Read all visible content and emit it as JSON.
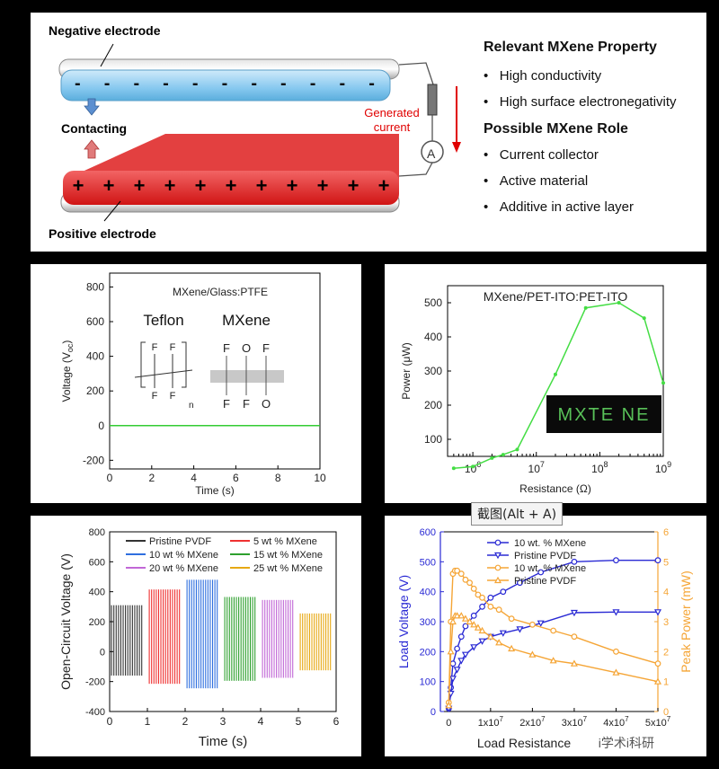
{
  "top": {
    "negative_label": "Negative electrode",
    "positive_label": "Positive electrode",
    "contacting_label": "Contacting",
    "generated_current": [
      "Generated",
      "current"
    ],
    "ammeter_symbol": "A",
    "minus_signs": [
      "-",
      "-",
      "-",
      "-",
      "-",
      "-",
      "-",
      "-",
      "-",
      "-",
      "-"
    ],
    "plus_signs": [
      "+",
      "+",
      "+",
      "+",
      "+",
      "+",
      "+",
      "+",
      "+",
      "+",
      "+"
    ],
    "property_heading": "Relevant MXene Property",
    "property_items": [
      "High conductivity",
      "High surface electronegativity"
    ],
    "role_heading": "Possible MXene Role",
    "role_items": [
      "Current collector",
      "Active material",
      "Additive in active layer"
    ],
    "bullet_char": "•",
    "colors": {
      "negative": "#8fcdef",
      "positive": "#e21d1d",
      "arrow": "#e00000"
    }
  },
  "chart_data": [
    {
      "type": "line",
      "inset_title": "MXene/Glass:PTFE",
      "xlabel": "Time (s)",
      "ylabel": "Voltage (V",
      "ylabel_sub": "oc",
      "ylabel_end": ")",
      "xlim": [
        0,
        10
      ],
      "ylim": [
        -250,
        880
      ],
      "xticks": [
        0,
        2,
        4,
        6,
        8,
        10
      ],
      "yticks": [
        -200,
        0,
        200,
        400,
        600,
        800
      ],
      "series": [
        {
          "x": [
            0,
            10
          ],
          "y": [
            0,
            0
          ],
          "color": "#33cc33"
        }
      ],
      "schematic": {
        "teflon_label": "Teflon",
        "mxene_label": "MXene",
        "teflon_atoms": [
          "F",
          "F",
          "F",
          "F"
        ],
        "teflon_n": "n",
        "mxene_top": [
          "F",
          "O",
          "F"
        ],
        "mxene_bottom": [
          "F",
          "F",
          "O"
        ]
      }
    },
    {
      "type": "line",
      "title": "MXene/PET-ITO:PET-ITO",
      "xlabel": "Resistance (Ω)",
      "ylabel": "Power (μW)",
      "xscale": "log",
      "xlim": [
        400000,
        1000000000
      ],
      "ylim": [
        50,
        550
      ],
      "xtick_base": "10",
      "xtick_exps": [
        "6",
        "7",
        "8",
        "9"
      ],
      "yticks": [
        100,
        200,
        300,
        400,
        500
      ],
      "series": [
        {
          "x": [
            500000,
            1000000,
            2000000,
            3000000,
            5000000,
            20000000,
            60000000,
            200000000,
            500000000,
            1000000000
          ],
          "y": [
            15,
            20,
            45,
            55,
            70,
            290,
            485,
            500,
            455,
            265
          ],
          "color": "#44dd44"
        }
      ],
      "display_text": "MXTE NE"
    },
    {
      "type": "bar",
      "xlabel": "Time (s)",
      "ylabel": "Open-Circuit Voltage (V)",
      "xlim": [
        0,
        6
      ],
      "ylim": [
        -400,
        800
      ],
      "xticks": [
        0,
        1,
        2,
        3,
        4,
        5,
        6
      ],
      "yticks": [
        -400,
        -200,
        0,
        200,
        400,
        600,
        800
      ],
      "series": [
        {
          "name": "Pristine PVDF",
          "start": 0.05,
          "end": 0.85,
          "pos": 310,
          "neg": -160,
          "color": "#333333"
        },
        {
          "name": "5 wt % MXene",
          "start": 1.05,
          "end": 1.85,
          "pos": 415,
          "neg": -215,
          "color": "#ef3030"
        },
        {
          "name": "10 wt % MXene",
          "start": 2.05,
          "end": 2.85,
          "pos": 480,
          "neg": -245,
          "color": "#2f6fdf"
        },
        {
          "name": "15 wt % MXene",
          "start": 3.05,
          "end": 3.85,
          "pos": 365,
          "neg": -195,
          "color": "#2ea02e"
        },
        {
          "name": "20 wt % MXene",
          "start": 4.05,
          "end": 4.85,
          "pos": 345,
          "neg": -175,
          "color": "#c167d6"
        },
        {
          "name": "25 wt % MXene",
          "start": 5.05,
          "end": 5.85,
          "pos": 255,
          "neg": -125,
          "color": "#e7a813"
        }
      ]
    },
    {
      "type": "line",
      "tooltip": "截图(Alt + A)",
      "xlabel": "Load Resistance",
      "ylabel": "Load Voltage (V)",
      "ylabel2": "Peak Power (mW)",
      "xlim": [
        -2000000,
        50000000
      ],
      "ylim": [
        0,
        600
      ],
      "ylim2": [
        0,
        6
      ],
      "xtick_values": [
        0,
        10000000,
        20000000,
        30000000,
        40000000,
        50000000
      ],
      "xtick_labels": [
        [
          "0",
          ""
        ],
        [
          "1x10",
          "7"
        ],
        [
          "2x10",
          "7"
        ],
        [
          "3x10",
          "7"
        ],
        [
          "4x10",
          "7"
        ],
        [
          "5x10",
          "7"
        ]
      ],
      "yticks": [
        0,
        100,
        200,
        300,
        400,
        500,
        600
      ],
      "yticks2": [
        0,
        1,
        2,
        3,
        4,
        5,
        6
      ],
      "watermark": "i学术i科研",
      "series": [
        {
          "name": "10 wt. % MXene",
          "axis": "left",
          "marker": "circle",
          "color": "#2a2ad4",
          "x": [
            0,
            500000,
            1000000,
            2000000,
            3000000,
            4000000,
            6000000,
            8000000,
            10000000,
            13000000,
            17000000,
            22000000,
            30000000,
            40000000,
            50000000
          ],
          "y": [
            10,
            80,
            160,
            210,
            250,
            285,
            320,
            350,
            380,
            400,
            430,
            465,
            500,
            505,
            505
          ]
        },
        {
          "name": "Pristine PVDF",
          "axis": "left",
          "marker": "triangle-down",
          "color": "#2a2ad4",
          "x": [
            0,
            500000,
            1000000,
            2000000,
            3000000,
            4000000,
            6000000,
            8000000,
            10000000,
            13000000,
            17000000,
            22000000,
            30000000,
            40000000,
            50000000
          ],
          "y": [
            10,
            60,
            110,
            140,
            170,
            190,
            215,
            235,
            250,
            262,
            275,
            295,
            330,
            332,
            332
          ]
        },
        {
          "name": "10 wt. % MXene",
          "axis": "right",
          "marker": "circle",
          "color": "#f5a536",
          "x": [
            0,
            500000,
            1000000,
            1500000,
            2000000,
            3000000,
            4000000,
            5000000,
            6000000,
            7000000,
            8000000,
            10000000,
            12000000,
            15000000,
            20000000,
            25000000,
            30000000,
            40000000,
            50000000
          ],
          "y": [
            0.3,
            3.0,
            4.6,
            4.7,
            4.7,
            4.6,
            4.4,
            4.3,
            4.1,
            3.9,
            3.8,
            3.5,
            3.4,
            3.1,
            2.9,
            2.7,
            2.5,
            2.0,
            1.6
          ]
        },
        {
          "name": "Pristine PVDF",
          "axis": "right",
          "marker": "triangle-up",
          "color": "#f5a536",
          "x": [
            0,
            500000,
            1000000,
            1500000,
            2000000,
            3000000,
            4000000,
            5000000,
            6000000,
            7000000,
            8000000,
            10000000,
            12000000,
            15000000,
            20000000,
            25000000,
            30000000,
            40000000,
            50000000
          ],
          "y": [
            0.2,
            2.0,
            3.0,
            3.2,
            3.2,
            3.2,
            3.1,
            3.0,
            2.9,
            2.8,
            2.7,
            2.5,
            2.3,
            2.1,
            1.9,
            1.7,
            1.6,
            1.3,
            1.0
          ]
        }
      ]
    }
  ]
}
